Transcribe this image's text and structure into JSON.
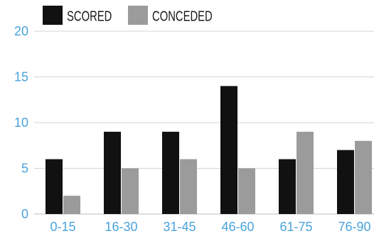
{
  "chart_data": {
    "type": "bar",
    "categories": [
      "0-15",
      "16-30",
      "31-45",
      "46-60",
      "61-75",
      "76-90"
    ],
    "series": [
      {
        "name": "SCORED",
        "values": [
          6,
          9,
          9,
          14,
          6,
          7
        ],
        "color": "#111111"
      },
      {
        "name": "CONCEDED",
        "values": [
          2,
          5,
          6,
          5,
          9,
          8
        ],
        "color": "#9b9b9b"
      }
    ],
    "ylim": [
      0,
      20
    ],
    "yticks": [
      0,
      5,
      10,
      15,
      20
    ],
    "grid": true,
    "legend": "top-left",
    "tick_color": "#4aa3dc",
    "grid_color": "#d4d4d4",
    "background": "#ffffff"
  }
}
